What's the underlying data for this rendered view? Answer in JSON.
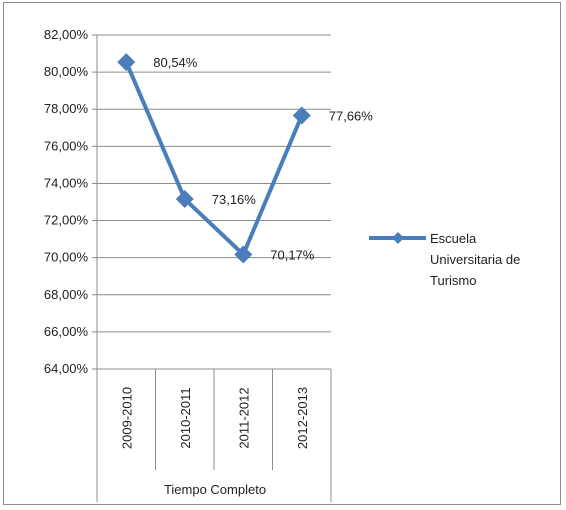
{
  "chart_data": {
    "type": "line",
    "group_label": "Tiempo Completo",
    "categories": [
      "2009-2010",
      "2010-2011",
      "2011-2012",
      "2012-2013"
    ],
    "series": [
      {
        "name_lines": [
          "Escuela",
          "Universitaria de",
          "Turismo"
        ],
        "values": [
          80.54,
          73.16,
          70.17,
          77.66
        ],
        "labels": [
          "80,54%",
          "73,16%",
          "70,17%",
          "77,66%"
        ],
        "color": "#4a7ebb",
        "marker": "diamond"
      }
    ],
    "ylim": [
      64,
      82
    ],
    "yticks": [
      "64,00%",
      "66,00%",
      "68,00%",
      "70,00%",
      "72,00%",
      "74,00%",
      "76,00%",
      "78,00%",
      "80,00%",
      "82,00%"
    ],
    "grid": true,
    "legend_position": "right"
  }
}
